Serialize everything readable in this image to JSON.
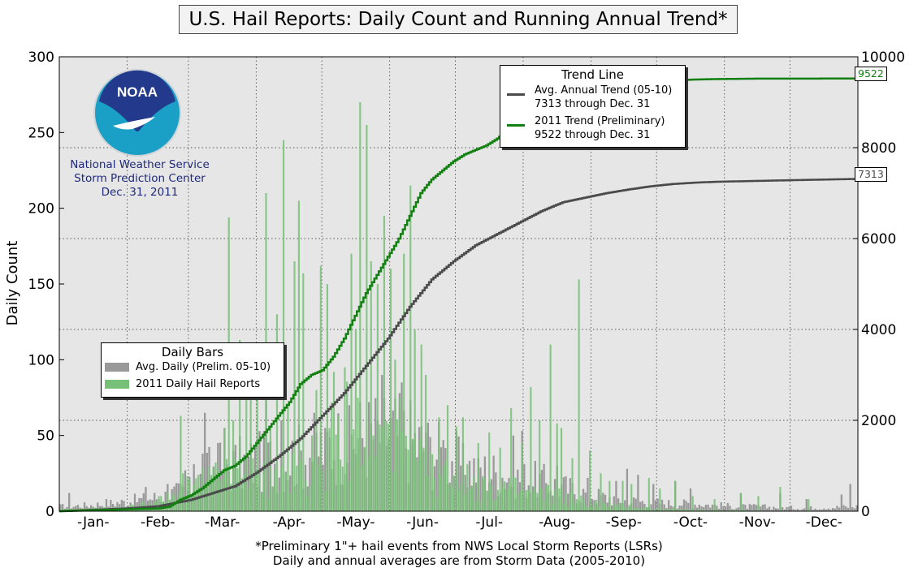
{
  "title": "U.S. Hail Reports: Daily Count and Running Annual Trend*",
  "org": {
    "agency": "NOAA",
    "line1": "National Weather Service",
    "line2": "Storm Prediction Center",
    "line3": "Dec. 31, 2011"
  },
  "footer": {
    "line1": "*Preliminary 1\"+ hail events from NWS Local Storm Reports (LSRs)",
    "line2": "Daily and annual averages are from Storm Data (2005-2010)"
  },
  "legend_bars": {
    "title": "Daily Bars",
    "avg_label": "Avg. Daily (Prelim. 05-10)",
    "y2011_label": "2011 Daily Hail Reports"
  },
  "legend_trend": {
    "title": "Trend Line",
    "avg_label1": "Avg. Annual Trend (05-10)",
    "avg_label2": "7313 through Dec. 31",
    "y2011_label1": "2011 Trend (Preliminary)",
    "y2011_label2": "9522 through Dec. 31"
  },
  "end_labels": {
    "y2011": "9522",
    "avg": "7313"
  },
  "colors": {
    "plot_bg": "#e6e6e6",
    "avg_bar": "#999999",
    "bar_2011": "#77c077",
    "avg_trend": "#4a4a4a",
    "trend_2011": "#118011",
    "noaa_blue": "#1f2a78"
  },
  "chart_data": {
    "type": "bar",
    "xlabel": "",
    "ylabel": "Daily Count",
    "ylim": [
      0,
      300
    ],
    "y2lim": [
      0,
      10000
    ],
    "yticks": [
      "0",
      "50",
      "100",
      "150",
      "200",
      "250",
      "300"
    ],
    "y2ticks": [
      "0",
      "2000",
      "4000",
      "6000",
      "8000",
      "10000"
    ],
    "months": [
      "-Jan-",
      "-Feb-",
      "-Mar-",
      "-Apr-",
      "-May-",
      "-Jun-",
      "-Jul-",
      "-Aug-",
      "-Sep-",
      "-Oct-",
      "-Nov-",
      "-Dec-"
    ],
    "grid": true,
    "daily_bars": {
      "avg_anchors": [
        [
          1,
          3
        ],
        [
          15,
          4
        ],
        [
          30,
          6
        ],
        [
          45,
          9
        ],
        [
          60,
          14
        ],
        [
          70,
          28
        ],
        [
          80,
          30
        ],
        [
          90,
          32
        ],
        [
          100,
          34
        ],
        [
          110,
          36
        ],
        [
          120,
          42
        ],
        [
          130,
          46
        ],
        [
          140,
          50
        ],
        [
          150,
          52
        ],
        [
          160,
          48
        ],
        [
          170,
          40
        ],
        [
          180,
          34
        ],
        [
          190,
          28
        ],
        [
          200,
          25
        ],
        [
          210,
          22
        ],
        [
          220,
          20
        ],
        [
          230,
          16
        ],
        [
          240,
          12
        ],
        [
          250,
          9
        ],
        [
          260,
          7
        ],
        [
          270,
          6
        ],
        [
          280,
          5
        ],
        [
          290,
          5
        ],
        [
          300,
          4
        ],
        [
          310,
          3
        ],
        [
          320,
          3
        ],
        [
          340,
          2
        ],
        [
          365,
          3
        ]
      ],
      "avg_spikes": [
        [
          5,
          12
        ],
        [
          22,
          8
        ],
        [
          40,
          16
        ],
        [
          50,
          18
        ],
        [
          58,
          27
        ],
        [
          62,
          31
        ],
        [
          66,
          38
        ],
        [
          67,
          65
        ],
        [
          73,
          45
        ],
        [
          76,
          55
        ],
        [
          95,
          80
        ],
        [
          102,
          60
        ],
        [
          117,
          65
        ],
        [
          122,
          55
        ],
        [
          133,
          70
        ],
        [
          142,
          72
        ],
        [
          148,
          90
        ],
        [
          157,
          85
        ],
        [
          168,
          52
        ],
        [
          176,
          47
        ],
        [
          185,
          45
        ],
        [
          192,
          35
        ],
        [
          208,
          50
        ],
        [
          212,
          53
        ],
        [
          228,
          30
        ],
        [
          242,
          22
        ],
        [
          255,
          20
        ],
        [
          260,
          28
        ],
        [
          265,
          24
        ],
        [
          272,
          18
        ],
        [
          282,
          20
        ],
        [
          289,
          15
        ],
        [
          312,
          12
        ],
        [
          330,
          12
        ],
        [
          342,
          8
        ],
        [
          358,
          11
        ],
        [
          362,
          18
        ]
      ],
      "y2011_anchors": [
        [
          1,
          1
        ],
        [
          30,
          2
        ],
        [
          45,
          6
        ],
        [
          55,
          10
        ],
        [
          60,
          15
        ],
        [
          70,
          20
        ],
        [
          80,
          25
        ],
        [
          90,
          22
        ],
        [
          100,
          20
        ],
        [
          110,
          25
        ],
        [
          120,
          30
        ],
        [
          125,
          45
        ],
        [
          130,
          55
        ],
        [
          140,
          55
        ],
        [
          150,
          45
        ],
        [
          160,
          32
        ],
        [
          170,
          26
        ],
        [
          180,
          22
        ],
        [
          190,
          18
        ],
        [
          200,
          16
        ],
        [
          210,
          14
        ],
        [
          220,
          12
        ],
        [
          230,
          10
        ],
        [
          240,
          7
        ],
        [
          250,
          4
        ],
        [
          260,
          3
        ],
        [
          270,
          2
        ],
        [
          280,
          1
        ],
        [
          300,
          1
        ],
        [
          330,
          0
        ],
        [
          365,
          0
        ]
      ],
      "y2011_spikes": [
        [
          47,
          10
        ],
        [
          56,
          63
        ],
        [
          57,
          25
        ],
        [
          76,
          55
        ],
        [
          78,
          194
        ],
        [
          80,
          60
        ],
        [
          83,
          113
        ],
        [
          86,
          75
        ],
        [
          88,
          100
        ],
        [
          91,
          95
        ],
        [
          95,
          210
        ],
        [
          97,
          55
        ],
        [
          100,
          130
        ],
        [
          103,
          245
        ],
        [
          105,
          70
        ],
        [
          108,
          165
        ],
        [
          110,
          205
        ],
        [
          112,
          157
        ],
        [
          116,
          50
        ],
        [
          118,
          80
        ],
        [
          120,
          162
        ],
        [
          123,
          150
        ],
        [
          126,
          92
        ],
        [
          128,
          63
        ],
        [
          131,
          95
        ],
        [
          134,
          170
        ],
        [
          136,
          120
        ],
        [
          138,
          270
        ],
        [
          141,
          255
        ],
        [
          143,
          165
        ],
        [
          146,
          150
        ],
        [
          149,
          195
        ],
        [
          152,
          160
        ],
        [
          154,
          100
        ],
        [
          156,
          75
        ],
        [
          158,
          170
        ],
        [
          161,
          215
        ],
        [
          163,
          120
        ],
        [
          166,
          110
        ],
        [
          168,
          90
        ],
        [
          174,
          62
        ],
        [
          178,
          70
        ],
        [
          182,
          56
        ],
        [
          185,
          62
        ],
        [
          192,
          45
        ],
        [
          197,
          52
        ],
        [
          202,
          42
        ],
        [
          207,
          68
        ],
        [
          212,
          45
        ],
        [
          216,
          82
        ],
        [
          220,
          60
        ],
        [
          225,
          110
        ],
        [
          228,
          58
        ],
        [
          230,
          55
        ],
        [
          235,
          35
        ],
        [
          238,
          153
        ],
        [
          243,
          40
        ],
        [
          248,
          25
        ],
        [
          252,
          20
        ],
        [
          258,
          20
        ],
        [
          262,
          18
        ],
        [
          270,
          22
        ],
        [
          275,
          15
        ],
        [
          282,
          20
        ],
        [
          290,
          10
        ],
        [
          300,
          8
        ],
        [
          312,
          12
        ],
        [
          320,
          10
        ],
        [
          330,
          16
        ],
        [
          343,
          8
        ]
      ]
    },
    "trend": {
      "y2011_points": [
        [
          0,
          0
        ],
        [
          30,
          40
        ],
        [
          45,
          60
        ],
        [
          50,
          100
        ],
        [
          55,
          250
        ],
        [
          60,
          350
        ],
        [
          65,
          500
        ],
        [
          70,
          700
        ],
        [
          75,
          900
        ],
        [
          80,
          1000
        ],
        [
          85,
          1200
        ],
        [
          90,
          1500
        ],
        [
          95,
          1800
        ],
        [
          100,
          2100
        ],
        [
          105,
          2400
        ],
        [
          110,
          2800
        ],
        [
          115,
          3000
        ],
        [
          120,
          3100
        ],
        [
          125,
          3400
        ],
        [
          130,
          3800
        ],
        [
          135,
          4300
        ],
        [
          140,
          4800
        ],
        [
          145,
          5200
        ],
        [
          150,
          5600
        ],
        [
          155,
          6000
        ],
        [
          160,
          6500
        ],
        [
          165,
          7000
        ],
        [
          170,
          7300
        ],
        [
          175,
          7500
        ],
        [
          180,
          7700
        ],
        [
          185,
          7850
        ],
        [
          190,
          7950
        ],
        [
          195,
          8050
        ],
        [
          200,
          8200
        ],
        [
          210,
          8600
        ],
        [
          220,
          8900
        ],
        [
          230,
          9150
        ],
        [
          240,
          9300
        ],
        [
          250,
          9380
        ],
        [
          260,
          9430
        ],
        [
          270,
          9460
        ],
        [
          280,
          9480
        ],
        [
          290,
          9500
        ],
        [
          300,
          9510
        ],
        [
          320,
          9520
        ],
        [
          365,
          9522
        ]
      ],
      "avg_points": [
        [
          0,
          0
        ],
        [
          30,
          60
        ],
        [
          45,
          110
        ],
        [
          60,
          250
        ],
        [
          70,
          400
        ],
        [
          80,
          550
        ],
        [
          90,
          850
        ],
        [
          100,
          1200
        ],
        [
          110,
          1600
        ],
        [
          120,
          2100
        ],
        [
          130,
          2600
        ],
        [
          140,
          3200
        ],
        [
          150,
          3800
        ],
        [
          160,
          4500
        ],
        [
          170,
          5100
        ],
        [
          180,
          5500
        ],
        [
          190,
          5850
        ],
        [
          200,
          6100
        ],
        [
          210,
          6350
        ],
        [
          220,
          6600
        ],
        [
          230,
          6800
        ],
        [
          240,
          6900
        ],
        [
          250,
          7000
        ],
        [
          260,
          7080
        ],
        [
          270,
          7150
        ],
        [
          280,
          7200
        ],
        [
          290,
          7230
        ],
        [
          300,
          7250
        ],
        [
          320,
          7270
        ],
        [
          340,
          7290
        ],
        [
          365,
          7313
        ]
      ]
    }
  }
}
